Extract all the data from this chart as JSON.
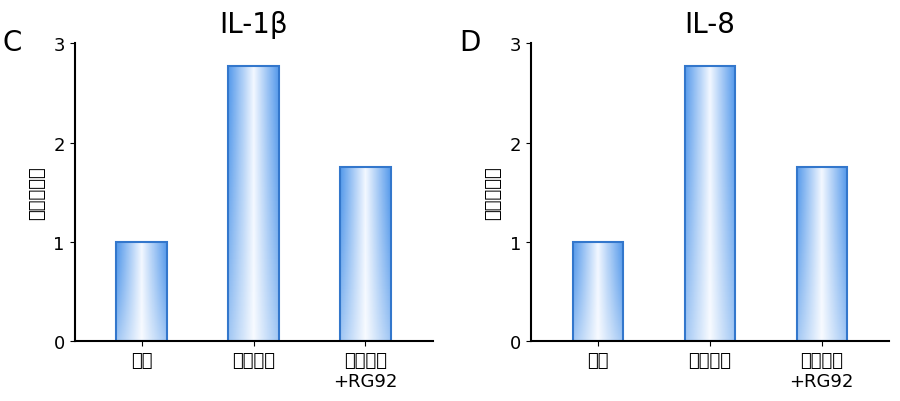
{
  "panels": [
    {
      "label": "C",
      "title": "IL-1β",
      "categories": [
        "対照",
        "アクネ菌",
        "アクネ菌\n+RG92"
      ],
      "values": [
        1.0,
        2.77,
        1.75
      ],
      "ylabel": "相対発現量",
      "ylim": [
        0,
        3
      ],
      "yticks": [
        0,
        1,
        2,
        3
      ]
    },
    {
      "label": "D",
      "title": "IL-8",
      "categories": [
        "対照",
        "アクネ菌",
        "アクネ菌\n+RG92"
      ],
      "values": [
        1.0,
        2.77,
        1.75
      ],
      "ylabel": "相対発現量",
      "ylim": [
        0,
        3
      ],
      "yticks": [
        0,
        1,
        2,
        3
      ]
    }
  ],
  "bar_edge_color": "#3377cc",
  "background_color": "#ffffff",
  "label_fontsize": 20,
  "title_fontsize": 20,
  "tick_fontsize": 13,
  "ylabel_fontsize": 13,
  "bar_width": 0.45
}
